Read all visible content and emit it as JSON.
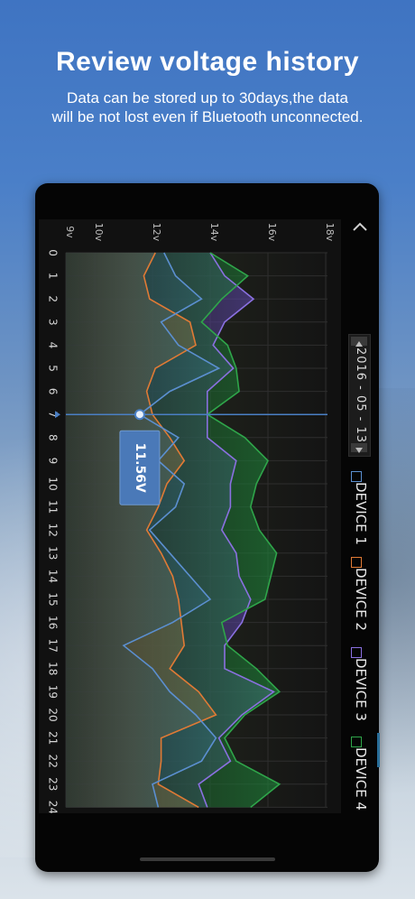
{
  "header": {
    "title": "Review voltage history",
    "subtitle_line1": "Data can be stored up to 30days,the data",
    "subtitle_line2": "will be not lost even if Bluetooth unconnected."
  },
  "date_picker": {
    "value": "2016 - 05 - 13"
  },
  "tooltip": {
    "value": "11.56V",
    "hour": 7
  },
  "colors": {
    "device1": "#5b8fd0",
    "device2": "#e07a35",
    "device3": "#8a70e0",
    "device4": "#2fa54a",
    "accent": "#4a7fc4"
  },
  "icons": {
    "collapse": "chevron-up-icon",
    "date_up": "triangle-up-icon",
    "date_down": "triangle-down-icon",
    "legend": "checkbox-icon"
  },
  "legend": [
    {
      "label": "DEVICE 1"
    },
    {
      "label": "DEVICE 2"
    },
    {
      "label": "DEVICE 3"
    },
    {
      "label": "DEVICE 4"
    }
  ],
  "chart_data": {
    "type": "line",
    "x_axis": {
      "label": "",
      "ticks": [
        "0",
        "1",
        "2",
        "3",
        "4",
        "5",
        "6",
        "7",
        "8",
        "9",
        "10",
        "11",
        "12",
        "13",
        "14",
        "15",
        "16",
        "17",
        "18",
        "19",
        "20",
        "21",
        "22",
        "23",
        "24"
      ],
      "range": [
        0,
        24
      ]
    },
    "y_axis": {
      "label": "",
      "ticks": [
        "9v",
        "10v",
        "12v",
        "14v",
        "16v",
        "18v"
      ],
      "range": [
        9,
        18
      ]
    },
    "grid": true,
    "series": [
      {
        "name": "DEVICE 1",
        "values": [
          12.4,
          12.8,
          13.7,
          12.3,
          12.9,
          14.3,
          12.6,
          11.56,
          12.9,
          12.2,
          13.1,
          12.8,
          11.9,
          12.6,
          13.3,
          14.0,
          12.7,
          11.0,
          12.0,
          12.6,
          13.5,
          14.2,
          13.7,
          12.0,
          12.2
        ]
      },
      {
        "name": "DEVICE 2",
        "values": [
          12.1,
          11.7,
          11.9,
          13.3,
          13.5,
          12.1,
          11.8,
          12.0,
          12.6,
          13.1,
          12.5,
          12.2,
          11.8,
          12.3,
          12.7,
          12.9,
          13.0,
          13.1,
          12.6,
          13.6,
          14.2,
          12.3,
          12.3,
          12.2,
          13.6
        ]
      },
      {
        "name": "DEVICE 3",
        "values": [
          14.0,
          14.5,
          15.5,
          14.5,
          14.1,
          14.8,
          13.9,
          13.9,
          13.9,
          14.9,
          14.7,
          14.7,
          14.4,
          14.9,
          15.0,
          15.4,
          15.1,
          14.5,
          14.5,
          16.2,
          15.1,
          14.3,
          14.7,
          13.6,
          13.9
        ]
      },
      {
        "name": "DEVICE 4",
        "values": [
          14.0,
          15.3,
          14.4,
          13.7,
          14.6,
          14.9,
          15.0,
          13.9,
          15.2,
          16.0,
          15.6,
          15.4,
          15.7,
          16.3,
          16.1,
          15.9,
          14.4,
          14.6,
          15.6,
          16.4,
          15.2,
          14.5,
          14.9,
          16.4,
          15.4
        ]
      }
    ]
  }
}
